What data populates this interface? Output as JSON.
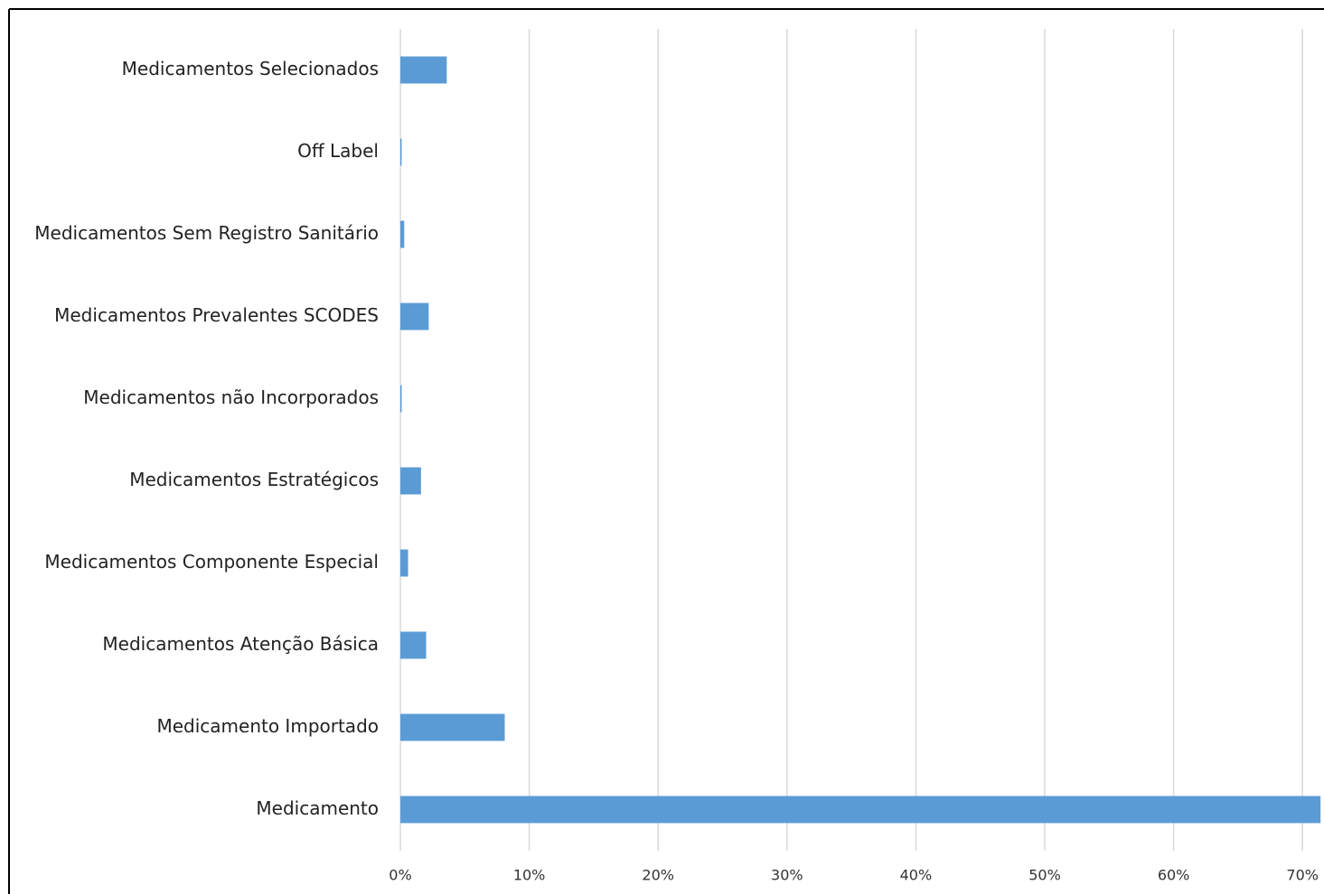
{
  "chart_data": {
    "type": "barh",
    "categories": [
      "Medicamentos Selecionados",
      "Off Label",
      "Medicamentos Sem Registro Sanitário",
      "Medicamentos Prevalentes SCODES",
      "Medicamentos não Incorporados",
      "Medicamentos Estratégicos",
      "Medicamentos Componente Especial",
      "Medicamentos Atenção Básica",
      "Medicamento Importado",
      "Medicamento"
    ],
    "values": [
      3.6,
      0.1,
      0.3,
      2.2,
      0.1,
      1.6,
      0.6,
      2.0,
      8.1,
      71.4
    ],
    "color": "#5b9bd5",
    "xlim": [
      0,
      71.5
    ],
    "xticks": [
      {
        "value": 0,
        "label": "0%"
      },
      {
        "value": 10,
        "label": "10%"
      },
      {
        "value": 20,
        "label": "20%"
      },
      {
        "value": 30,
        "label": "30%"
      },
      {
        "value": 40,
        "label": "40%"
      },
      {
        "value": 50,
        "label": "50%"
      },
      {
        "value": 60,
        "label": "60%"
      },
      {
        "value": 70,
        "label": "70%"
      }
    ],
    "grid": true
  }
}
